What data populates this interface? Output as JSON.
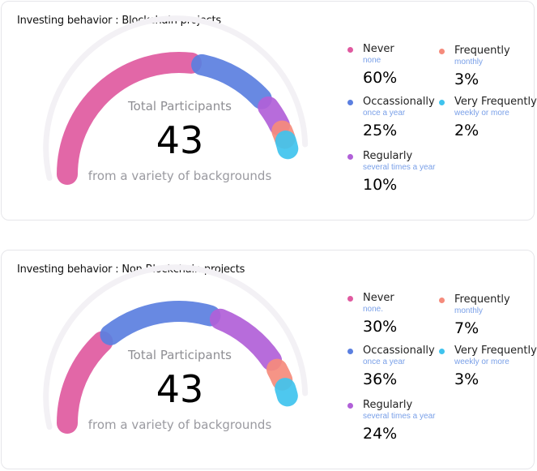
{
  "colors": {
    "never": "#e05aa0",
    "occasionally": "#5b7fe0",
    "regularly": "#b160d8",
    "frequently": "#f58b7c",
    "very_frequently": "#3fc3ee"
  },
  "legend_labels": [
    {
      "key": "never",
      "name": "Never",
      "freq": "none"
    },
    {
      "key": "occasionally",
      "name": "Occassionally",
      "freq": "once a year"
    },
    {
      "key": "regularly",
      "name": "Regularly",
      "freq": "several times a year"
    },
    {
      "key": "frequently",
      "name": "Frequently",
      "freq": "monthly"
    },
    {
      "key": "very_frequently",
      "name": "Very Frequently",
      "freq": "weekly or more"
    }
  ],
  "chart_data": [
    {
      "type": "gauge",
      "title": "Investing behavior : Blockchain projects",
      "center_label": "Total Participants",
      "total": "43",
      "center_sub": "from a variety of backgrounds",
      "categories": [
        "Never",
        "Occassionally",
        "Regularly",
        "Frequently",
        "Very Frequently"
      ],
      "values": [
        60,
        25,
        10,
        3,
        2
      ],
      "value_labels": [
        "60%",
        "25%",
        "10%",
        "3%",
        "2%"
      ],
      "never_freq": "none"
    },
    {
      "type": "gauge",
      "title": "Investing behavior : Non Blockchain projects",
      "center_label": "Total Participants",
      "total": "43",
      "center_sub": "from a variety of backgrounds",
      "categories": [
        "Never",
        "Occassionally",
        "Regularly",
        "Frequently",
        "Very Frequently"
      ],
      "values": [
        30,
        36,
        24,
        7,
        3
      ],
      "value_labels": [
        "30%",
        "36%",
        "24%",
        "7%",
        "3%"
      ],
      "never_freq": "none."
    }
  ]
}
